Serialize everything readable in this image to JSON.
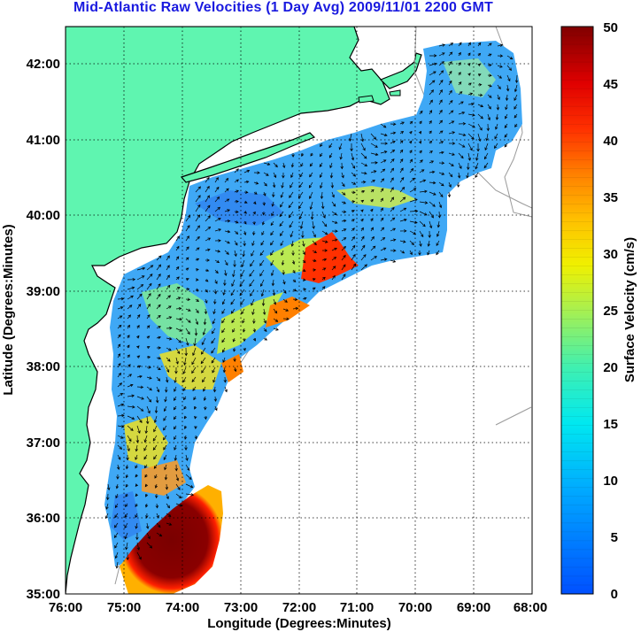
{
  "title": "Mid-Atlantic Raw Velocities (1 Day Avg) 2009/11/01 2200 GMT",
  "x_axis": {
    "label": "Longitude (Degrees:Minutes)",
    "ticks": [
      "76:00",
      "75:00",
      "74:00",
      "73:00",
      "72:00",
      "71:00",
      "70:00",
      "69:00",
      "68:00"
    ]
  },
  "y_axis": {
    "label": "Latitude (Degrees:Minutes)",
    "ticks": [
      "42:00",
      "41:00",
      "40:00",
      "39:00",
      "38:00",
      "37:00",
      "36:00",
      "35:00"
    ]
  },
  "colorbar": {
    "label": "Surface Velocity (cm/s)",
    "ticks": [
      "0",
      "5",
      "10",
      "15",
      "20",
      "25",
      "30",
      "35",
      "40",
      "45",
      "50"
    ],
    "min": 0,
    "max": 50,
    "colormap": "jet"
  },
  "colors": {
    "land": "#5ff5b0",
    "title": "#1a1adf",
    "coast": "#000000",
    "bathymetry": "#9a9a9a"
  },
  "grid": "dotted"
}
